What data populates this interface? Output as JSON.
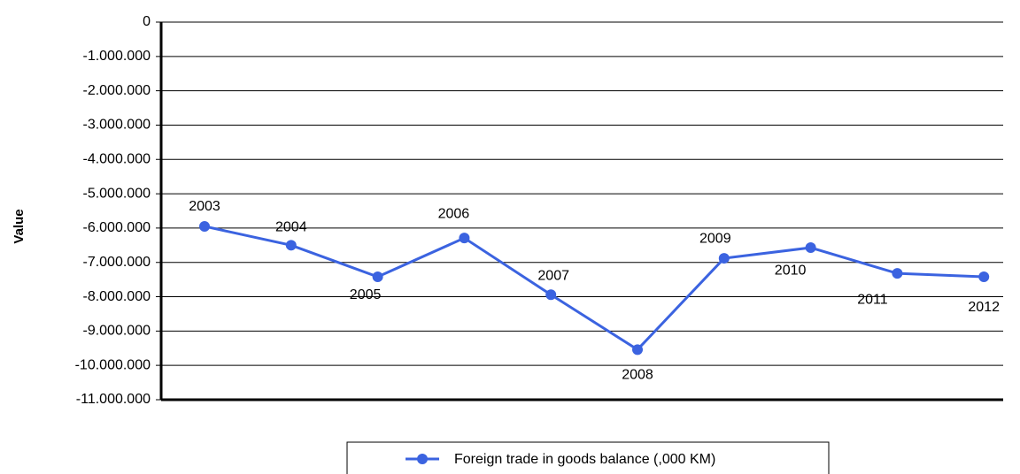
{
  "chart_data": {
    "type": "line",
    "y_label": "Value",
    "categories": [
      "2003",
      "2004",
      "2005",
      "2006",
      "2007",
      "2008",
      "2009",
      "2010",
      "2011",
      "2012"
    ],
    "series": [
      {
        "name": "Foreign trade in goods balance (,000 KM)",
        "color": "#3b63e0",
        "values": [
          -5950000,
          -6500000,
          -7420000,
          -6290000,
          -7940000,
          -9540000,
          -6880000,
          -6570000,
          -7320000,
          -7420000
        ]
      }
    ],
    "ylim": [
      -11000000,
      0
    ],
    "yticks": [
      0,
      {
        "value": -1000000,
        "label": "-1.000.000"
      },
      {
        "value": -2000000,
        "label": "-2.000.000"
      },
      {
        "value": -3000000,
        "label": "-3.000.000"
      },
      {
        "value": -4000000,
        "label": "-4.000.000"
      },
      {
        "value": -5000000,
        "label": "-5.000.000"
      },
      {
        "value": -6000000,
        "label": "-6.000.000"
      },
      {
        "value": -7000000,
        "label": "-7.000.000"
      },
      {
        "value": -8000000,
        "label": "-8.000.000"
      },
      {
        "value": -9000000,
        "label": "-9.000.000"
      },
      {
        "value": -10000000,
        "label": "-10.000.000"
      },
      {
        "value": -11000000,
        "label": "-11.000.000"
      }
    ],
    "grid": true,
    "legend": "bottom"
  }
}
